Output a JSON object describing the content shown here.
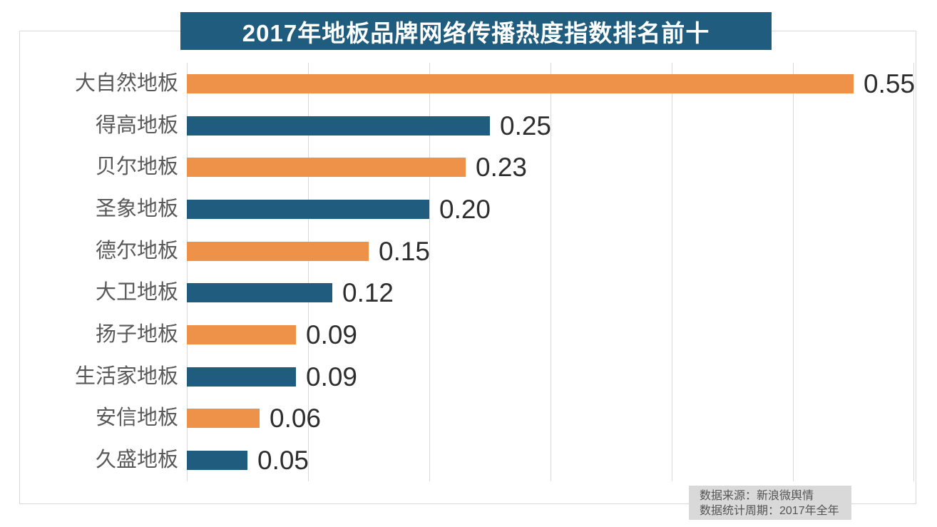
{
  "title": {
    "text": "2017年地板品牌网络传播热度指数排名前十",
    "bg_color": "#1f5c7e",
    "text_color": "#ffffff"
  },
  "footer": {
    "source": "数据来源：新浪微舆情",
    "period": "数据统计周期：2017年全年",
    "bg_color": "#d9d9d9",
    "text_color": "#555555"
  },
  "chart_data": {
    "type": "bar",
    "orientation": "horizontal",
    "title": "2017年地板品牌网络传播热度指数排名前十",
    "categories": [
      "大自然地板",
      "得高地板",
      "贝尔地板",
      "圣象地板",
      "德尔地板",
      "大卫地板",
      "扬子地板",
      "生活家地板",
      "安信地板",
      "久盛地板"
    ],
    "values": [
      0.55,
      0.25,
      0.23,
      0.2,
      0.15,
      0.12,
      0.09,
      0.09,
      0.06,
      0.05
    ],
    "value_labels": [
      "0.55",
      "0.25",
      "0.23",
      "0.20",
      "0.15",
      "0.12",
      "0.09",
      "0.09",
      "0.06",
      "0.05"
    ],
    "xlim": [
      0,
      0.6
    ],
    "gridline_step": 0.1,
    "grid": "vertical-only",
    "legend": "none",
    "bar_palette_alternating": [
      "#ef9249",
      "#1f5c7e"
    ],
    "gridline_color": "#d9d9d9",
    "frame_border_color": "#d9d9d9",
    "category_label_color": "#595959",
    "value_label_color": "#2e2e2e"
  }
}
